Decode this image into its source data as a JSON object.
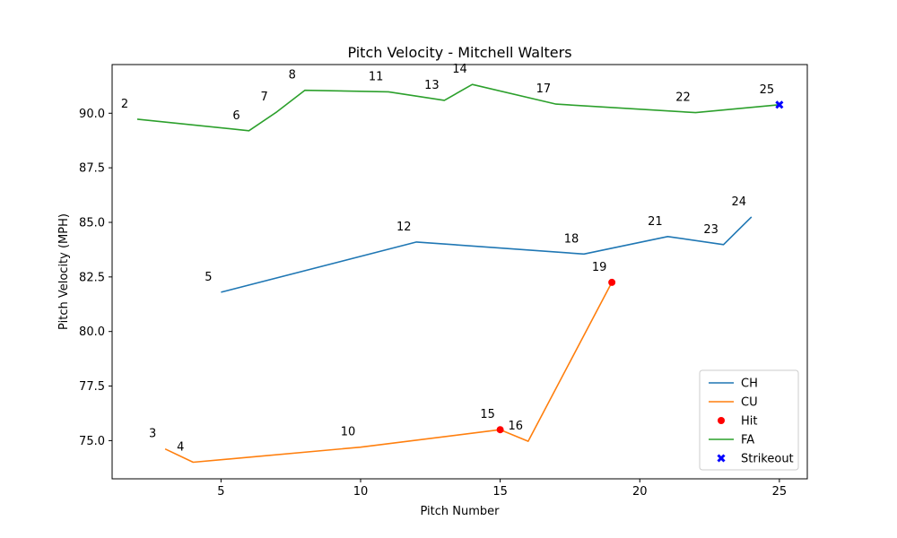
{
  "chart_data": {
    "type": "line",
    "title": "Pitch Velocity - Mitchell Walters",
    "xlabel": "Pitch Number",
    "ylabel": "Pitch Velocity (MPH)",
    "xlim": [
      1.1,
      26.0
    ],
    "ylim": [
      73.25,
      92.23
    ],
    "xticks": [
      5,
      10,
      15,
      20,
      25
    ],
    "yticks": [
      75.0,
      77.5,
      80.0,
      82.5,
      85.0,
      87.5,
      90.0
    ],
    "ytick_labels": [
      "75.0",
      "77.5",
      "80.0",
      "82.5",
      "85.0",
      "87.5",
      "90.0"
    ],
    "grid": false,
    "legend_position": "lower right",
    "series": [
      {
        "name": "CH",
        "color": "#1f77b4",
        "points": [
          [
            5,
            81.8
          ],
          [
            12,
            84.1
          ],
          [
            18,
            83.55
          ],
          [
            21,
            84.35
          ],
          [
            23,
            83.98
          ],
          [
            24,
            85.25
          ]
        ]
      },
      {
        "name": "CU",
        "color": "#ff7f0e",
        "points": [
          [
            3,
            74.62
          ],
          [
            4,
            74.01
          ],
          [
            10,
            74.7
          ],
          [
            15,
            75.5
          ],
          [
            16,
            74.97
          ],
          [
            19,
            82.25
          ]
        ]
      },
      {
        "name": "FA",
        "color": "#2ca02c",
        "points": [
          [
            2,
            89.73
          ],
          [
            6,
            89.2
          ],
          [
            7,
            90.06
          ],
          [
            8,
            91.05
          ],
          [
            11,
            90.98
          ],
          [
            13,
            90.59
          ],
          [
            14,
            91.32
          ],
          [
            17,
            90.42
          ],
          [
            22,
            90.03
          ],
          [
            25,
            90.39
          ]
        ]
      }
    ],
    "markers": [
      {
        "name": "Hit",
        "color": "#ff0000",
        "shape": "circle",
        "points": [
          [
            15,
            75.5
          ],
          [
            19,
            82.25
          ]
        ]
      },
      {
        "name": "Strikeout",
        "color": "#0000ff",
        "shape": "x",
        "points": [
          [
            25,
            90.39
          ]
        ]
      }
    ],
    "annotations": [
      {
        "text": "2",
        "x": 2,
        "y": 89.73
      },
      {
        "text": "3",
        "x": 3,
        "y": 74.62
      },
      {
        "text": "4",
        "x": 4,
        "y": 74.01
      },
      {
        "text": "5",
        "x": 5,
        "y": 81.8
      },
      {
        "text": "6",
        "x": 6,
        "y": 89.2
      },
      {
        "text": "7",
        "x": 7,
        "y": 90.06
      },
      {
        "text": "8",
        "x": 8,
        "y": 91.05
      },
      {
        "text": "10",
        "x": 10,
        "y": 74.7
      },
      {
        "text": "11",
        "x": 11,
        "y": 90.98
      },
      {
        "text": "12",
        "x": 12,
        "y": 84.1
      },
      {
        "text": "13",
        "x": 13,
        "y": 90.59
      },
      {
        "text": "14",
        "x": 14,
        "y": 91.32
      },
      {
        "text": "15",
        "x": 15,
        "y": 75.5
      },
      {
        "text": "16",
        "x": 16,
        "y": 74.97
      },
      {
        "text": "17",
        "x": 17,
        "y": 90.42
      },
      {
        "text": "18",
        "x": 18,
        "y": 83.55
      },
      {
        "text": "19",
        "x": 19,
        "y": 82.25
      },
      {
        "text": "21",
        "x": 21,
        "y": 84.35
      },
      {
        "text": "22",
        "x": 22,
        "y": 90.03
      },
      {
        "text": "23",
        "x": 23,
        "y": 83.98
      },
      {
        "text": "24",
        "x": 24,
        "y": 85.25
      },
      {
        "text": "25",
        "x": 25,
        "y": 90.39
      }
    ],
    "legend": [
      "CH",
      "CU",
      "Hit",
      "FA",
      "Strikeout"
    ]
  }
}
